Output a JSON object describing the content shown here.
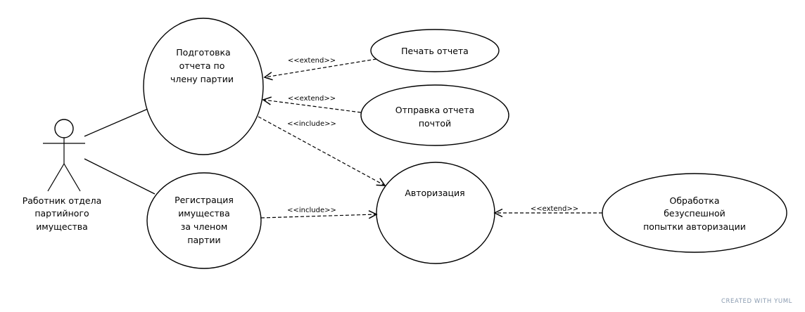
{
  "actor": {
    "name_lines": [
      "Работник отдела",
      "партийного",
      "имущества"
    ]
  },
  "use_cases": {
    "report": {
      "lines": [
        "Подготовка",
        "отчета по",
        "члену партии"
      ]
    },
    "print": {
      "lines": [
        "Печать отчета"
      ]
    },
    "send": {
      "lines": [
        "Отправка отчета",
        "почтой"
      ]
    },
    "register": {
      "lines": [
        "Регистрация",
        "имущества",
        "за членом",
        "партии"
      ]
    },
    "auth": {
      "lines": [
        "Авторизация"
      ]
    },
    "failed": {
      "lines": [
        "Обработка",
        "безуспешной",
        "попытки авторизации"
      ]
    }
  },
  "relations": {
    "print_extends_report": "<<extend>>",
    "send_extends_report": "<<extend>>",
    "report_includes_auth": "<<include>>",
    "register_includes_auth": "<<include>>",
    "failed_extends_auth": "<<extend>>"
  },
  "watermark": "CREATED WITH YUML"
}
